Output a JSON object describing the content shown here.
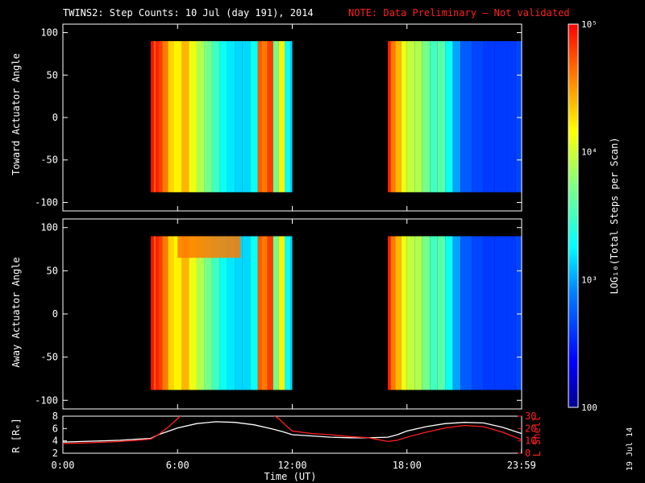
{
  "header": {
    "title": "TWINS2: Step Counts: 10 Jul (day 191), 2014",
    "note": "NOTE: Data Preliminary — Not validated"
  },
  "footer": {
    "date_stamp": "19 Jul 14"
  },
  "colors": {
    "background": "#000000",
    "axes": "#ffffff",
    "note": "#ff2020",
    "r_line": "#ffffff",
    "lshell_line": "#ff2020"
  },
  "chart_data": [
    {
      "type": "heatmap",
      "title": "TWINS2: Step Counts: 10 Jul (day 191), 2014",
      "ylabel": "Toward Actuator Angle",
      "ylim": [
        -110,
        110
      ],
      "y_ticks": [
        "100",
        "50",
        "0",
        "-50",
        "-100"
      ],
      "x_unit": "hour UT",
      "xlim": [
        0,
        24
      ],
      "data_blocks": [
        {
          "x_start": 4.6,
          "x_end": 12.0,
          "y_range": [
            -88,
            90
          ]
        },
        {
          "x_start": 17.0,
          "x_end": 23.99,
          "y_range": [
            -88,
            90
          ]
        }
      ],
      "column_log10_counts": [
        [
          4.6,
          4.95
        ],
        [
          4.75,
          4.7
        ],
        [
          4.85,
          4.9
        ],
        [
          5.0,
          4.8
        ],
        [
          5.2,
          4.6
        ],
        [
          5.5,
          4.3
        ],
        [
          5.8,
          4.2
        ],
        [
          6.2,
          4.4
        ],
        [
          6.6,
          4.1
        ],
        [
          7.0,
          3.9
        ],
        [
          7.4,
          3.7
        ],
        [
          7.8,
          3.5
        ],
        [
          8.2,
          3.3
        ],
        [
          8.6,
          3.2
        ],
        [
          9.0,
          3.15
        ],
        [
          9.4,
          3.15
        ],
        [
          9.8,
          3.3
        ],
        [
          10.2,
          4.7
        ],
        [
          10.4,
          4.6
        ],
        [
          10.7,
          4.8
        ],
        [
          11.0,
          3.7
        ],
        [
          11.3,
          4.2
        ],
        [
          11.6,
          3.3
        ],
        [
          11.9,
          3.15
        ],
        [
          17.0,
          4.9
        ],
        [
          17.15,
          4.6
        ],
        [
          17.4,
          4.4
        ],
        [
          17.7,
          4.1
        ],
        [
          18.0,
          3.95
        ],
        [
          18.4,
          3.9
        ],
        [
          18.8,
          3.7
        ],
        [
          19.2,
          3.5
        ],
        [
          19.6,
          3.6
        ],
        [
          20.0,
          3.3
        ],
        [
          20.4,
          3.0
        ],
        [
          20.8,
          2.75
        ],
        [
          21.4,
          2.65
        ],
        [
          22.0,
          2.6
        ],
        [
          22.6,
          2.6
        ],
        [
          23.2,
          2.6
        ],
        [
          23.7,
          2.65
        ]
      ]
    },
    {
      "type": "heatmap",
      "ylabel": "Away Actuator Angle",
      "ylim": [
        -110,
        110
      ],
      "y_ticks": [
        "100",
        "50",
        "0",
        "-50",
        "-100"
      ],
      "x_unit": "hour UT",
      "xlim": [
        0,
        24
      ],
      "data_blocks": [
        {
          "x_start": 4.6,
          "x_end": 12.0,
          "y_range": [
            -88,
            90
          ]
        },
        {
          "x_start": 17.0,
          "x_end": 23.99,
          "y_range": [
            -88,
            90
          ]
        }
      ],
      "column_log10_counts": [
        [
          4.6,
          4.95
        ],
        [
          4.75,
          4.7
        ],
        [
          4.85,
          4.9
        ],
        [
          5.0,
          4.8
        ],
        [
          5.2,
          4.6
        ],
        [
          5.5,
          4.3
        ],
        [
          5.8,
          4.2
        ],
        [
          6.2,
          4.4
        ],
        [
          6.6,
          4.1
        ],
        [
          7.0,
          3.9
        ],
        [
          7.4,
          3.7
        ],
        [
          7.8,
          3.5
        ],
        [
          8.2,
          3.3
        ],
        [
          8.6,
          3.2
        ],
        [
          9.0,
          3.15
        ],
        [
          9.4,
          3.15
        ],
        [
          9.8,
          3.3
        ],
        [
          10.2,
          4.7
        ],
        [
          10.4,
          4.6
        ],
        [
          10.7,
          4.8
        ],
        [
          11.0,
          3.7
        ],
        [
          11.3,
          4.2
        ],
        [
          11.6,
          3.3
        ],
        [
          11.9,
          3.15
        ],
        [
          17.0,
          4.9
        ],
        [
          17.15,
          4.6
        ],
        [
          17.4,
          4.4
        ],
        [
          17.7,
          4.1
        ],
        [
          18.0,
          3.95
        ],
        [
          18.4,
          3.9
        ],
        [
          18.8,
          3.7
        ],
        [
          19.2,
          3.5
        ],
        [
          19.6,
          3.6
        ],
        [
          20.0,
          3.3
        ],
        [
          20.4,
          3.0
        ],
        [
          20.8,
          2.75
        ],
        [
          21.4,
          2.65
        ],
        [
          22.0,
          2.6
        ],
        [
          22.6,
          2.6
        ],
        [
          23.2,
          2.6
        ],
        [
          23.7,
          2.65
        ]
      ],
      "hot_region": {
        "x_range": [
          6.0,
          9.3
        ],
        "y_range": [
          65,
          90
        ],
        "log10_counts": 4.6
      }
    },
    {
      "type": "line",
      "xlabel": "Time (UT)",
      "x_ticks": [
        "0:00",
        "6:00",
        "12:00",
        "18:00",
        "23:59"
      ],
      "xlim": [
        0,
        24
      ],
      "left_axis": {
        "label": "R [Rₑ]",
        "ticks": [
          "8",
          "6",
          "4",
          "2"
        ],
        "ylim": [
          2,
          8
        ]
      },
      "right_axis": {
        "label": "L Shell",
        "ticks": [
          "30",
          "20",
          "10",
          "0"
        ],
        "ylim": [
          0,
          30
        ]
      },
      "series": [
        {
          "axis": "left",
          "color": "#ffffff",
          "x": [
            0,
            1,
            2,
            3,
            4,
            4.6,
            5,
            6,
            7,
            8,
            9,
            10,
            11,
            11.5,
            12,
            13,
            14,
            15,
            16,
            17,
            17.5,
            18,
            19,
            20,
            21,
            22,
            23,
            23.99
          ],
          "y": [
            3.8,
            3.9,
            4.0,
            4.1,
            4.3,
            4.4,
            5.0,
            6.1,
            6.8,
            7.1,
            7.0,
            6.6,
            5.9,
            5.5,
            5.0,
            4.8,
            4.6,
            4.5,
            4.5,
            4.6,
            5.0,
            5.6,
            6.3,
            6.8,
            7.0,
            6.9,
            6.2,
            5.2
          ]
        },
        {
          "axis": "right",
          "color": "#ff2020",
          "x": [
            0,
            1,
            2,
            3,
            4,
            4.6,
            5,
            5.5,
            6,
            6.2
          ],
          "y": [
            7.8,
            8.3,
            8.8,
            9.5,
            10.5,
            11.5,
            15,
            21,
            28,
            31
          ]
        },
        {
          "axis": "right",
          "color": "#ff2020",
          "x": [
            11.0,
            11.3,
            11.7,
            12,
            13,
            14,
            15,
            16,
            17,
            17.5,
            18,
            19,
            20,
            21,
            22,
            23,
            23.99
          ],
          "y": [
            31,
            28,
            22,
            18,
            16,
            15,
            13.5,
            12.5,
            9.5,
            10.5,
            13,
            17,
            20.5,
            22.5,
            21.5,
            17,
            11
          ]
        }
      ]
    }
  ],
  "colorbar": {
    "label": "LOG₁₀(Total Steps per Scan)",
    "ticks": [
      "10⁵",
      "10⁴",
      "10³",
      "100"
    ],
    "range_log10": [
      2,
      5
    ]
  }
}
